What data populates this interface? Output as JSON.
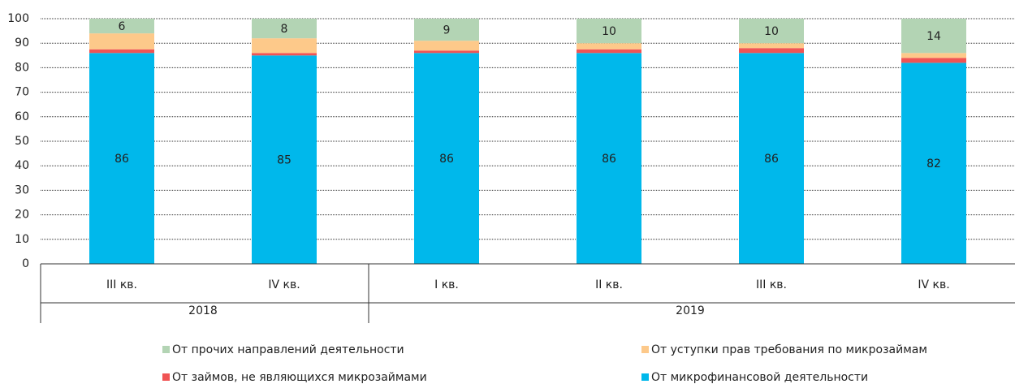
{
  "chart_data": {
    "type": "stacked_bar",
    "categories": [
      "III кв.",
      "IV кв.",
      "I кв.",
      "II кв.",
      "III кв.",
      "IV кв."
    ],
    "groups": [
      {
        "label": "2018",
        "span": 2
      },
      {
        "label": "2019",
        "span": 4
      }
    ],
    "series": [
      {
        "name": "От прочих направлений деятельности",
        "color": "#b3d4b4",
        "values": [
          6,
          8,
          9,
          10,
          10,
          14
        ],
        "labels": true
      },
      {
        "name": "От уступки прав требования по микрозаймам",
        "color": "#fdc98a",
        "values": [
          6.5,
          6,
          4,
          2.5,
          2,
          2
        ],
        "labels": false
      },
      {
        "name": "От займов, не являющихся микрозаймами",
        "color": "#f05454",
        "values": [
          1.5,
          1,
          1,
          1.5,
          2,
          2
        ],
        "labels": false
      },
      {
        "name": "От микрофинансовой деятельности",
        "color": "#00b8eb",
        "values": [
          86,
          85,
          86,
          86,
          86,
          82
        ],
        "labels": true
      }
    ],
    "ylim": [
      0,
      100
    ],
    "yticks": [
      0,
      10,
      20,
      30,
      40,
      50,
      60,
      70,
      80,
      90,
      100
    ],
    "grid": true
  }
}
